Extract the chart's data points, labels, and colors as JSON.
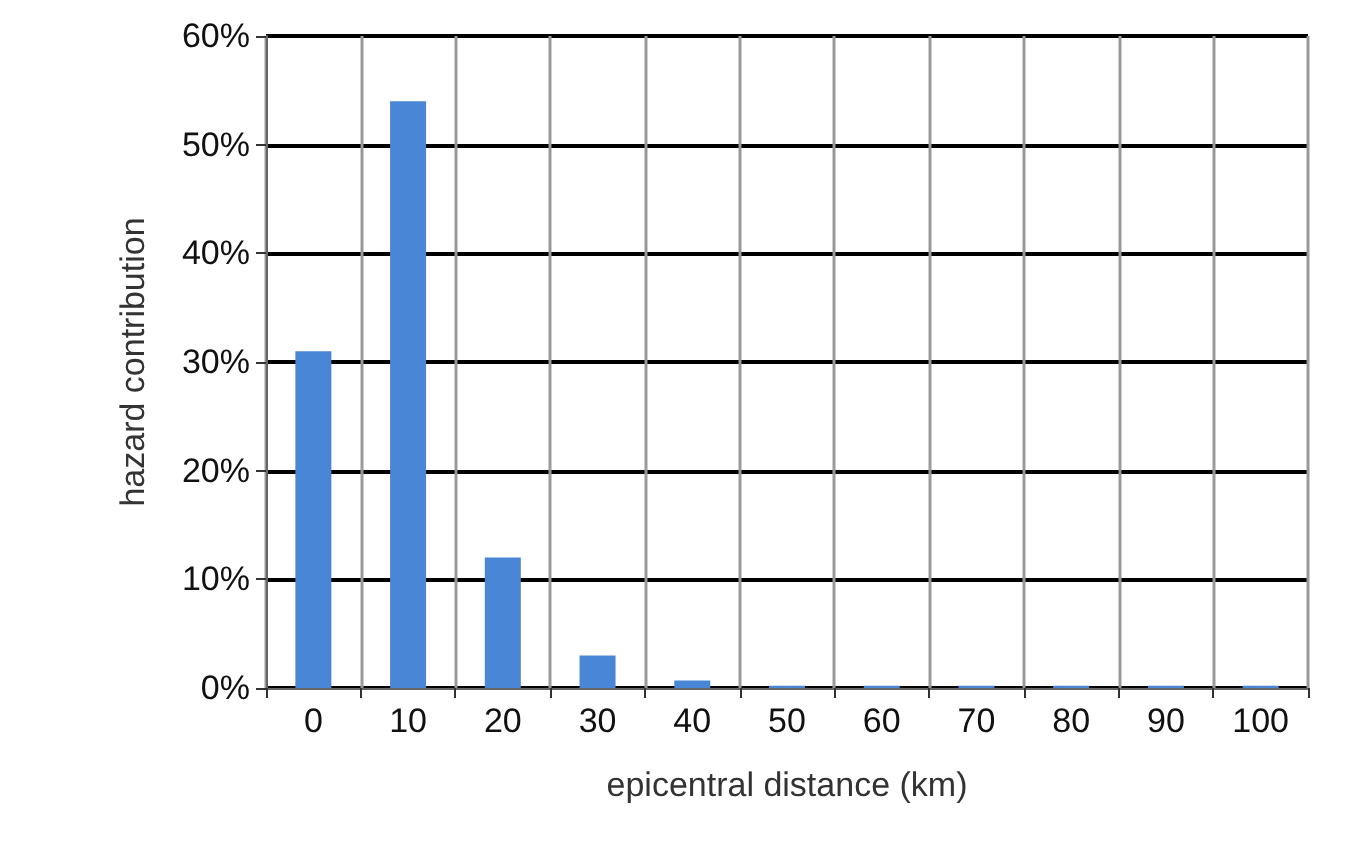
{
  "chart_data": {
    "type": "bar",
    "xlabel": "epicentral distance (km)",
    "ylabel": "hazard contribution",
    "categories": [
      "0",
      "10",
      "20",
      "30",
      "40",
      "50",
      "60",
      "70",
      "80",
      "90",
      "100"
    ],
    "values": [
      31,
      54,
      12,
      3,
      0.7,
      0.2,
      0.2,
      0.2,
      0.2,
      0.2,
      0.2
    ],
    "color": "#4a86d6",
    "ylim": [
      0,
      60
    ],
    "yticks": [
      {
        "value": 0,
        "label": "0%"
      },
      {
        "value": 10,
        "label": "10%"
      },
      {
        "value": 20,
        "label": "20%"
      },
      {
        "value": 30,
        "label": "30%"
      },
      {
        "value": 40,
        "label": "40%"
      },
      {
        "value": 50,
        "label": "50%"
      },
      {
        "value": 60,
        "label": "60%"
      }
    ],
    "grid": true
  }
}
